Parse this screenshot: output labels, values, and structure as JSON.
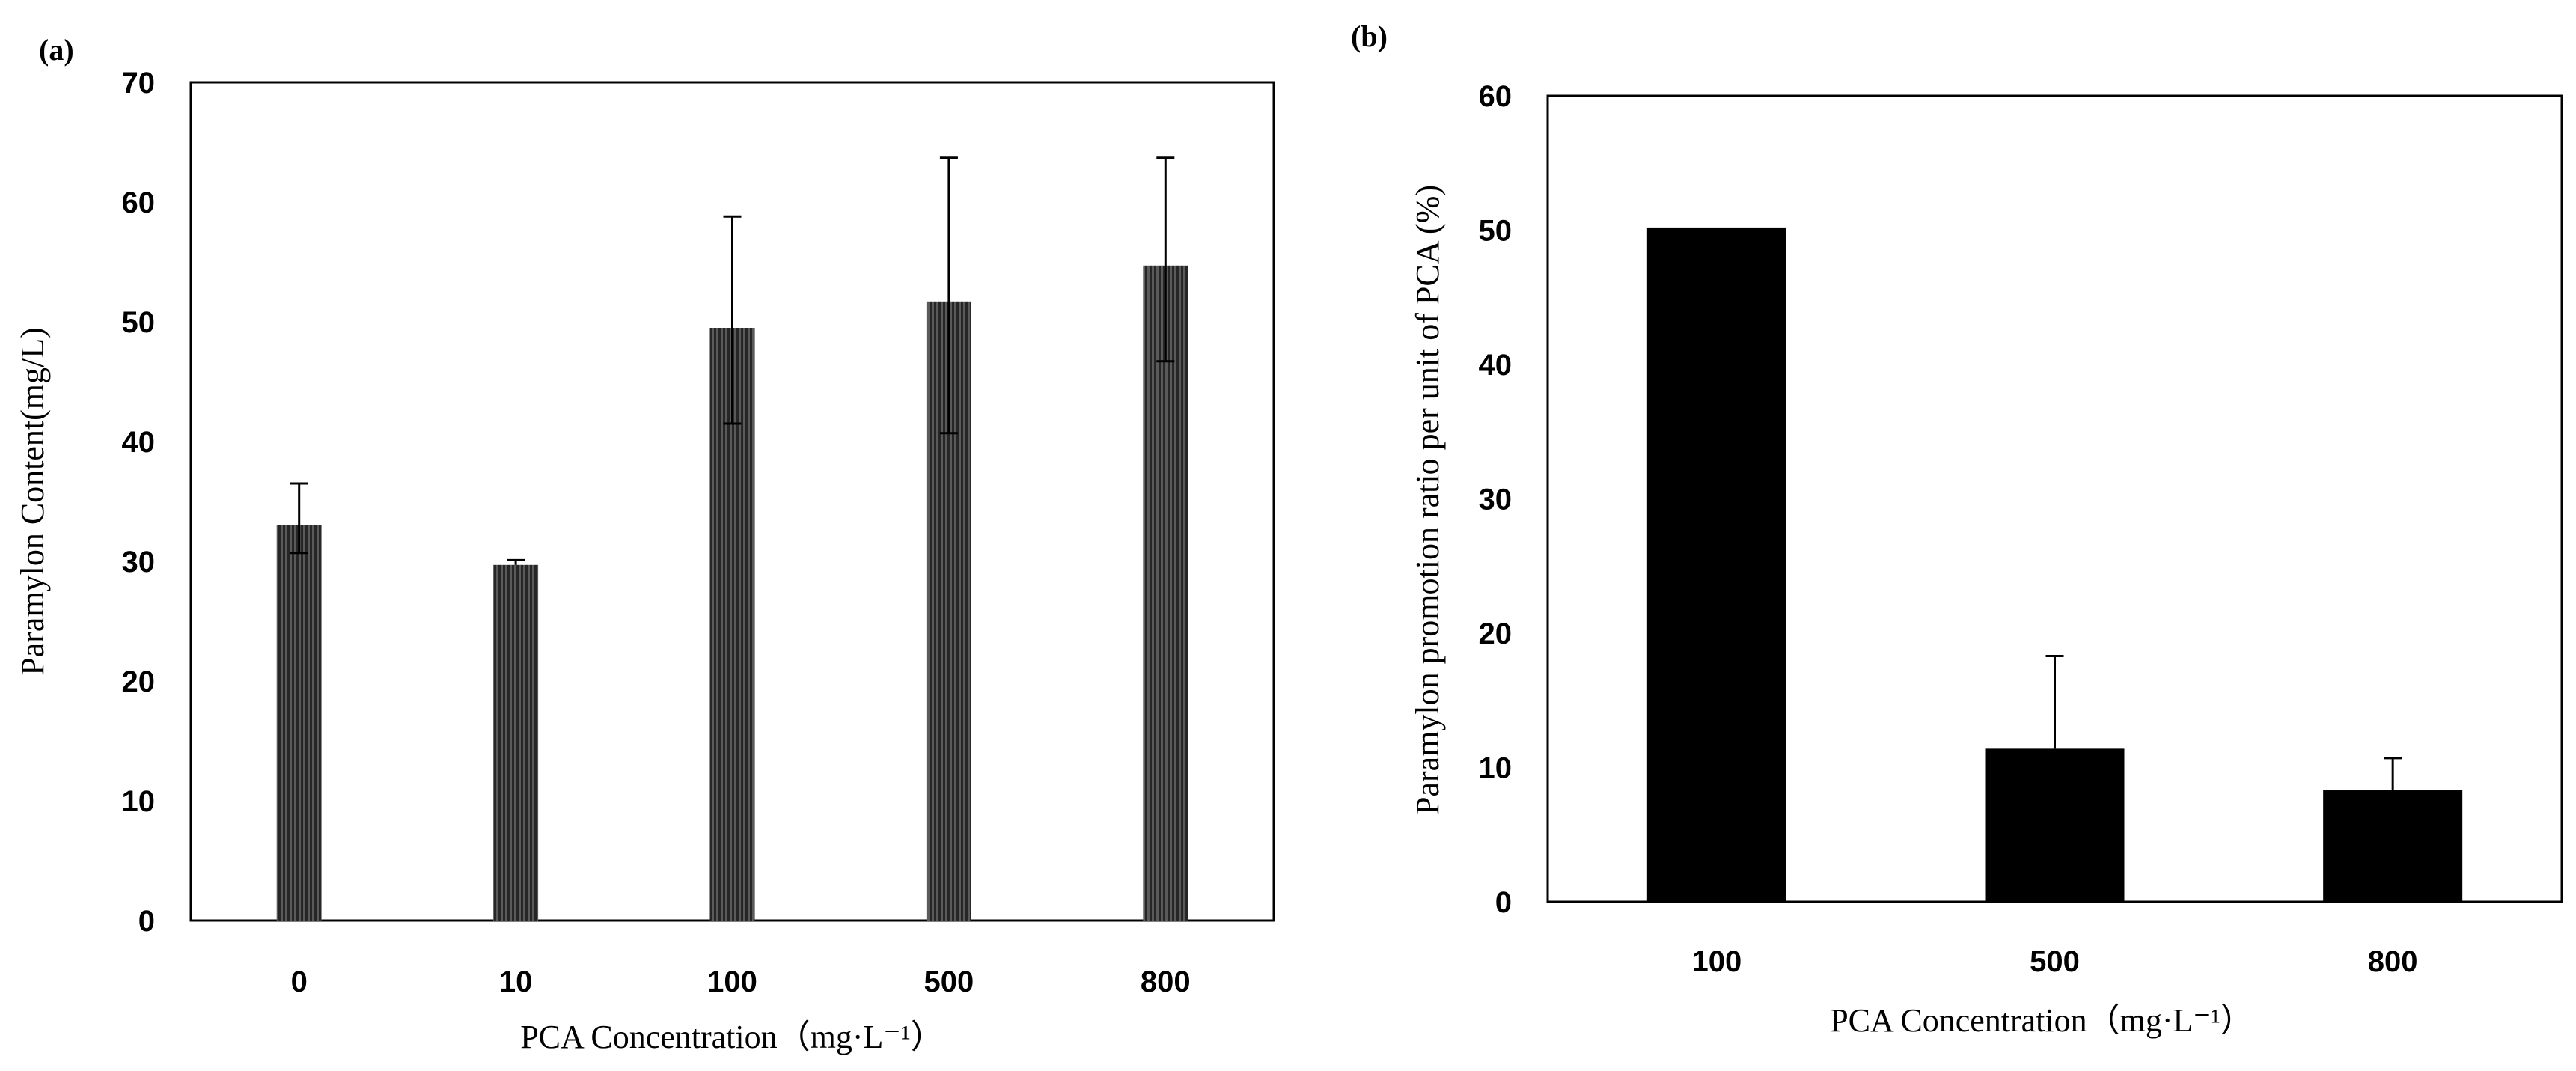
{
  "chart_data": [
    {
      "panel": "(a)",
      "type": "bar",
      "title": "",
      "categories": [
        "0",
        "10",
        "100",
        "500",
        "800"
      ],
      "values": [
        33,
        29.7,
        49.5,
        51.7,
        54.7
      ],
      "error_upper": [
        3.5,
        0.4,
        9.3,
        12,
        9
      ],
      "error_lower": [
        2.3,
        0.0,
        8.0,
        11,
        8
      ],
      "xlabel": "PCA Concentration（mg·L⁻¹）",
      "ylabel": "Paramylon Content(mg/L)",
      "ylim": [
        0,
        70
      ],
      "yticks": [
        "0",
        "10",
        "20",
        "30",
        "40",
        "50",
        "60",
        "70"
      ],
      "bar_color": "#3a3a3a",
      "bar_style": "vertical-hatched",
      "grid": false
    },
    {
      "panel": "(b)",
      "type": "bar",
      "title": "",
      "categories": [
        "100",
        "500",
        "800"
      ],
      "values": [
        50.2,
        11.4,
        8.3
      ],
      "error_upper": [
        0,
        6.9,
        2.4
      ],
      "error_lower": [
        0,
        0,
        0
      ],
      "xlabel": "PCA Concentration（mg·L⁻¹）",
      "ylabel": "Paramylon promotion ratio per unit of PCA (%)",
      "ylim": [
        0,
        60
      ],
      "yticks": [
        "0",
        "10",
        "20",
        "30",
        "40",
        "50",
        "60"
      ],
      "bar_color": "#000000",
      "grid": false
    }
  ]
}
